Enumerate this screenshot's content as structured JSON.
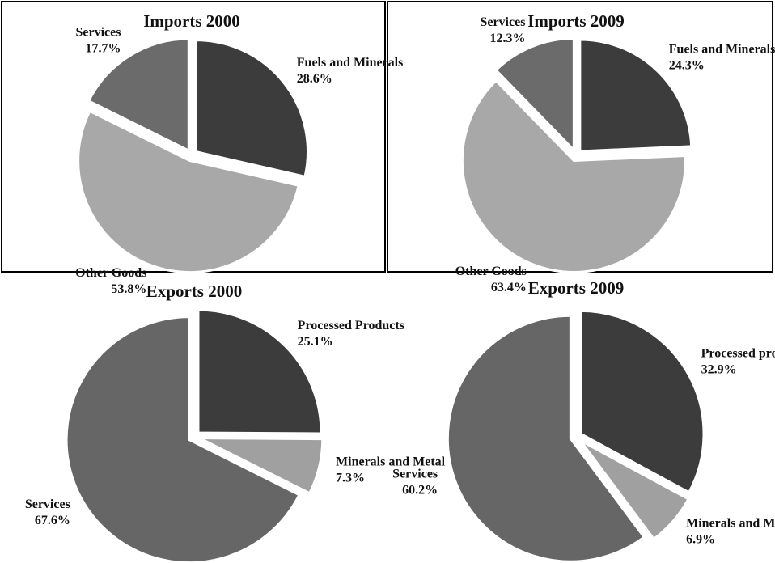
{
  "chart_data": [
    {
      "type": "pie",
      "title": "Imports 2000",
      "categories": [
        "Fuels and Minerals",
        "Other Goods",
        "Services"
      ],
      "values": [
        28.6,
        53.8,
        17.7
      ],
      "value_labels": [
        "28.6%",
        "53.8%",
        "17.7%"
      ],
      "colors": [
        "#3c3c3c",
        "#a8a8a8",
        "#6b6b6b"
      ]
    },
    {
      "type": "pie",
      "title": "Imports 2009",
      "categories": [
        "Fuels and Minerals",
        "Other Goods",
        "Services"
      ],
      "values": [
        24.3,
        63.4,
        12.3
      ],
      "value_labels": [
        "24.3%",
        "63.4%",
        "12.3%"
      ],
      "colors": [
        "#3c3c3c",
        "#a8a8a8",
        "#6b6b6b"
      ]
    },
    {
      "type": "pie",
      "title": "Exports 2000",
      "categories": [
        "Processed Products",
        "Minerals and Metal",
        "Services"
      ],
      "values": [
        25.1,
        7.3,
        67.6
      ],
      "value_labels": [
        "25.1%",
        "7.3%",
        "67.6%"
      ],
      "colors": [
        "#3c3c3c",
        "#a0a0a0",
        "#666666"
      ]
    },
    {
      "type": "pie",
      "title": "Exports 2009",
      "categories": [
        "Processed products",
        "Minerals and Metals",
        "Services"
      ],
      "values": [
        32.9,
        6.9,
        60.2
      ],
      "value_labels": [
        "32.9%",
        "6.9%",
        "60.2%"
      ],
      "colors": [
        "#3c3c3c",
        "#a0a0a0",
        "#666666"
      ]
    }
  ]
}
